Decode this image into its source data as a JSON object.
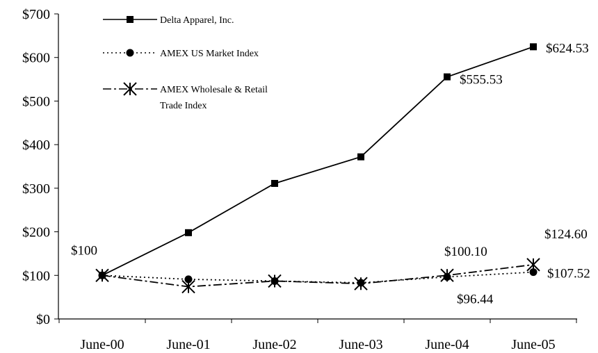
{
  "chart_data": {
    "type": "line",
    "title": "",
    "xlabel": "",
    "ylabel": "",
    "categories": [
      "June-00",
      "June-01",
      "June-02",
      "June-03",
      "June-04",
      "June-05"
    ],
    "ylim": [
      0,
      700
    ],
    "yticks": [
      0,
      100,
      200,
      300,
      400,
      500,
      600,
      700
    ],
    "ytick_labels": [
      "$0",
      "$100",
      "$200",
      "$300",
      "$400",
      "$500",
      "$600",
      "$700"
    ],
    "grid": false,
    "legend_position": "top-left",
    "series": [
      {
        "name": "Delta Apparel, Inc.",
        "marker": "square",
        "line_style": "solid",
        "values": [
          100,
          198,
          311,
          372,
          555.53,
          624.53
        ]
      },
      {
        "name": "AMEX US Market Index",
        "marker": "circle",
        "line_style": "dotted",
        "values": [
          100,
          91,
          87,
          83,
          96.44,
          107.52
        ]
      },
      {
        "name": "AMEX Wholesale & Retail Trade Index",
        "marker": "asterisk",
        "line_style": "dashdot",
        "values": [
          100,
          74,
          87,
          81,
          100.1,
          124.6
        ]
      }
    ],
    "annotations": [
      {
        "text": "$100",
        "series": 0,
        "index": 0
      },
      {
        "text": "$555.53",
        "series": 0,
        "index": 4
      },
      {
        "text": "$624.53",
        "series": 0,
        "index": 5
      },
      {
        "text": "$100.10",
        "series": 2,
        "index": 4
      },
      {
        "text": "$96.44",
        "series": 1,
        "index": 4
      },
      {
        "text": "$124.60",
        "series": 2,
        "index": 5
      },
      {
        "text": "$107.52",
        "series": 1,
        "index": 5
      }
    ],
    "legend": {
      "entries": [
        {
          "lines": [
            "Delta Apparel, Inc."
          ]
        },
        {
          "lines": [
            "AMEX US Market Index"
          ]
        },
        {
          "lines": [
            "AMEX Wholesale & Retail",
            "Trade Index"
          ]
        }
      ]
    }
  }
}
